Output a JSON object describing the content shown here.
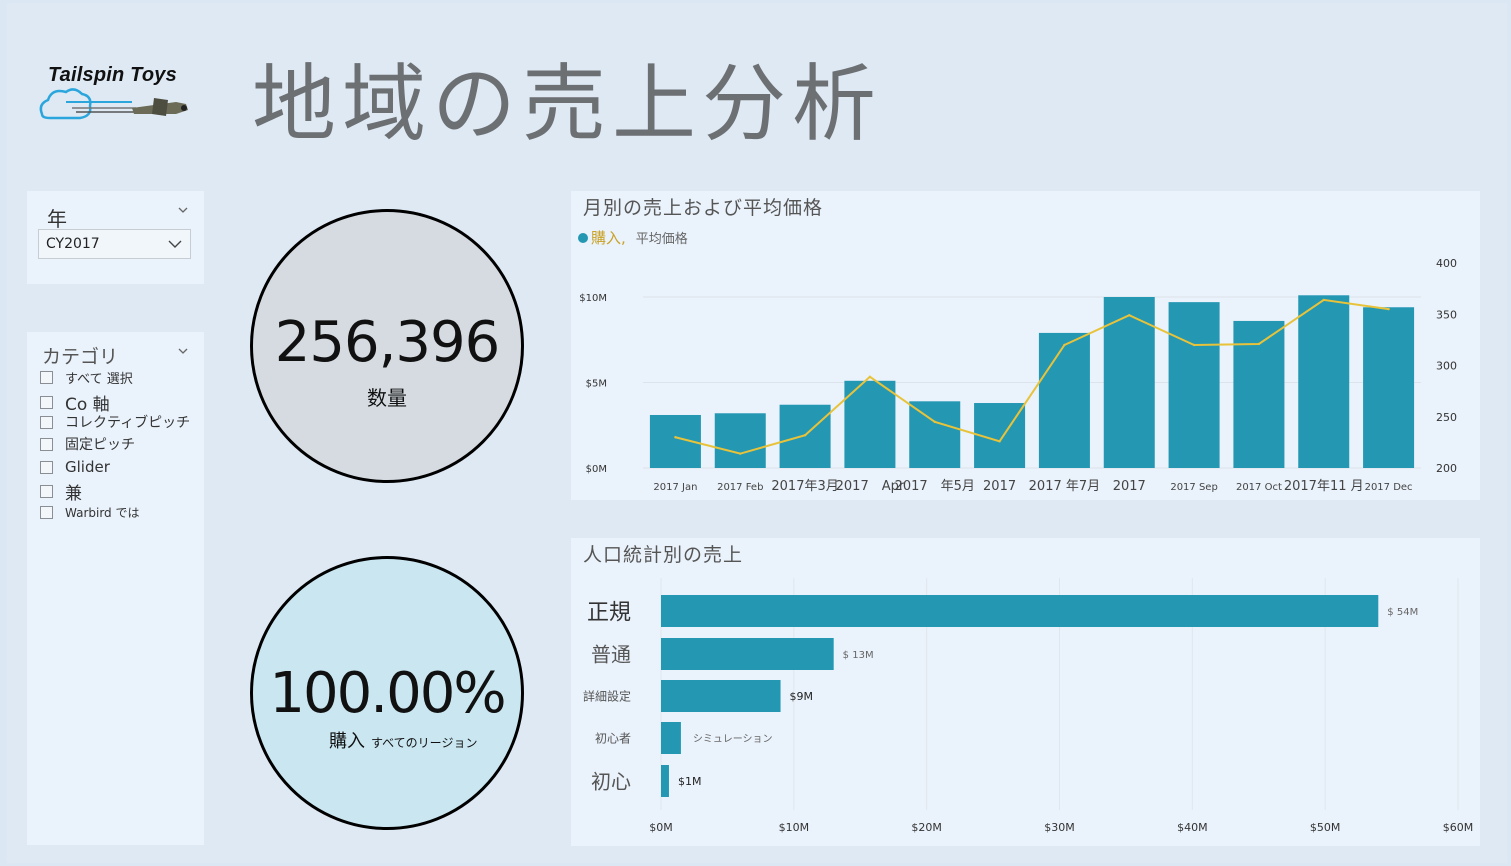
{
  "logo": {
    "text": "Tailspin Toys"
  },
  "page_title": "地域の売上分析",
  "year_slicer": {
    "title": "年",
    "selected": "CY2017"
  },
  "category_slicer": {
    "title": "カテゴリ",
    "items": [
      {
        "label": "すべて 選択",
        "size": 13
      },
      {
        "label": "Co 軸",
        "size": 17
      },
      {
        "label": "コレクティブピッチ",
        "size": 14
      },
      {
        "label": "固定ピッチ",
        "size": 14
      },
      {
        "label": "Glider",
        "size": 15
      },
      {
        "label": "兼",
        "size": 17
      },
      {
        "label": "Warbird では",
        "size": 12
      }
    ]
  },
  "kpi_quantity": {
    "value": "256,396",
    "label": "数量"
  },
  "kpi_purchase": {
    "value": "100.00%",
    "label": "購入",
    "sublabel": "すべてのリージョン"
  },
  "monthly_chart": {
    "title": "月別の売上および平均価格",
    "legend": {
      "series1": "購入,",
      "series2": "平均価格"
    },
    "x_labels": [
      "2017 Jan",
      "2017 Feb",
      "2017年3月",
      "2017　Apr",
      "2017　年5月",
      "2017",
      "2017 年7月",
      "2017",
      "2017 Sep",
      "2017 Oct",
      "2017年11 月",
      "2017 Dec"
    ],
    "left_ticks": [
      "$0M",
      "$5M",
      "$10M"
    ],
    "right_ticks": [
      "200",
      "250",
      "300",
      "350",
      "400"
    ]
  },
  "demographic_chart": {
    "title": "人口統計別の売上",
    "x_ticks": [
      "$0M",
      "$10M",
      "$20M",
      "$30M",
      "$40M",
      "$50M",
      "$60M"
    ]
  },
  "chart_data": [
    {
      "type": "bar",
      "title": "月別の売上および平均価格",
      "categories": [
        "2017 Jan",
        "2017 Feb",
        "2017年3月",
        "2017 Apr",
        "2017 年5月",
        "2017",
        "2017 年7月",
        "2017",
        "2017 Sep",
        "2017 Oct",
        "2017年11 月",
        "2017 Dec"
      ],
      "series": [
        {
          "name": "購入",
          "type": "bar",
          "axis": "left",
          "values": [
            3.1,
            3.2,
            3.7,
            5.1,
            3.9,
            3.8,
            7.9,
            10.0,
            9.7,
            8.6,
            10.1,
            9.4
          ]
        },
        {
          "name": "平均価格",
          "type": "line",
          "axis": "right",
          "color": "#e8c33a",
          "values": [
            230,
            214,
            232,
            289,
            245,
            226,
            320,
            349,
            320,
            321,
            364,
            355
          ]
        }
      ],
      "ylim": [
        0,
        10
      ],
      "ylim_right": [
        200,
        400
      ],
      "bar_color": "#2497b3",
      "grid": true
    },
    {
      "type": "bar",
      "orientation": "horizontal",
      "title": "人口統計別の売上",
      "categories": [
        "正規",
        "普通",
        "詳細設定",
        "初心者",
        "初心"
      ],
      "values": [
        54,
        13,
        9,
        1.5,
        0.6
      ],
      "data_labels": [
        "$ 54M",
        "$ 13M",
        "$9M",
        "シミュレーション",
        "$1M"
      ],
      "category_sizes": [
        22,
        20,
        12,
        12,
        20
      ],
      "xlim": [
        0,
        60
      ],
      "bar_color": "#2497b3",
      "grid": true
    }
  ]
}
